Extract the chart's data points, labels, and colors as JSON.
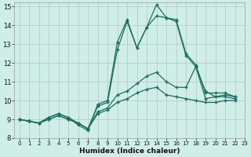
{
  "xlabel": "Humidex (Indice chaleur)",
  "xlim": [
    -0.5,
    23
  ],
  "ylim": [
    8,
    15.2
  ],
  "yticks": [
    8,
    9,
    10,
    11,
    12,
    13,
    14,
    15
  ],
  "xticks": [
    0,
    1,
    2,
    3,
    4,
    5,
    6,
    7,
    8,
    9,
    10,
    11,
    12,
    13,
    14,
    15,
    16,
    17,
    18,
    19,
    20,
    21,
    22,
    23
  ],
  "background_color": "#d0eee8",
  "grid_color": "#b8ccc8",
  "line_color": "#1a6e5e",
  "x_values": [
    0,
    1,
    2,
    3,
    4,
    5,
    6,
    7,
    8,
    9,
    10,
    11,
    12,
    13,
    14,
    15,
    16,
    17,
    18,
    19,
    20,
    21,
    22
  ],
  "lines": [
    [
      9.0,
      8.9,
      8.8,
      9.1,
      9.3,
      9.1,
      8.7,
      8.4,
      9.8,
      10.0,
      13.1,
      14.3,
      12.8,
      13.9,
      15.1,
      14.4,
      14.2,
      12.4,
      11.8,
      10.1,
      10.2,
      10.3,
      10.2
    ],
    [
      9.0,
      8.9,
      8.8,
      9.1,
      9.3,
      9.1,
      8.8,
      8.5,
      9.7,
      9.9,
      12.7,
      14.2,
      12.8,
      13.9,
      14.5,
      14.4,
      14.3,
      12.5,
      11.9,
      10.4,
      10.4,
      10.4,
      10.2
    ],
    [
      9.0,
      8.9,
      8.8,
      9.0,
      9.2,
      9.0,
      8.8,
      8.5,
      9.4,
      9.6,
      10.3,
      10.5,
      10.9,
      11.3,
      11.5,
      11.0,
      10.7,
      10.7,
      11.8,
      10.5,
      10.2,
      10.2,
      10.1
    ],
    [
      9.0,
      8.9,
      8.8,
      9.0,
      9.2,
      9.0,
      8.8,
      8.5,
      9.3,
      9.5,
      9.9,
      10.1,
      10.4,
      10.6,
      10.7,
      10.3,
      10.2,
      10.1,
      10.0,
      9.9,
      9.9,
      10.0,
      10.0
    ]
  ]
}
